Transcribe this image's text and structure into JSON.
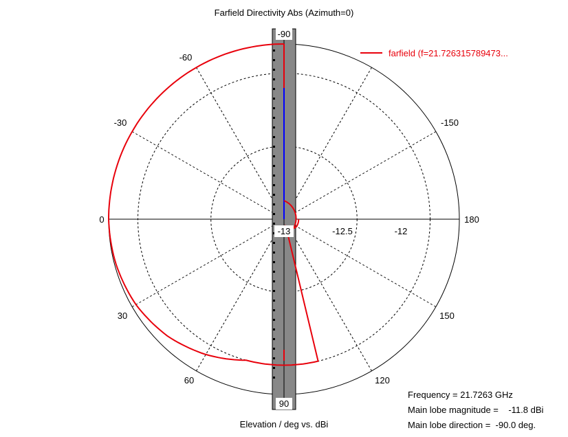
{
  "chart_data": {
    "type": "polar",
    "title": "Farfield Directivity Abs (Azimuth=0)",
    "xlabel": "Elevation / deg vs. dBi",
    "angle_ticks": [
      "-90",
      "-60",
      "-30",
      "0",
      "30",
      "60",
      "90",
      "120",
      "150",
      "180",
      "-150"
    ],
    "radial_ticks": [
      "-13",
      "-12.5",
      "-12"
    ],
    "radial_range": [
      -13,
      -11.8
    ],
    "grid": true,
    "legend_position": "top-right",
    "colors": {
      "series": "#e8000b",
      "main_lobe": "#0000ff",
      "bar": "#888888"
    },
    "series": [
      {
        "name": "farfield (f=21.726315789473...",
        "angle_deg": [
          -90,
          -75,
          -60,
          -45,
          -30,
          -15,
          0,
          15,
          30,
          45,
          60,
          75,
          90,
          105,
          120,
          135,
          150,
          165,
          180
        ],
        "values": [
          -11.8,
          -11.8,
          -11.8,
          -11.8,
          -11.8,
          -11.8,
          -11.8,
          -11.81,
          -11.83,
          -11.87,
          -11.93,
          -12.0,
          -12.0,
          -12.95,
          -12.93,
          -12.91,
          -12.9,
          -12.9,
          -12.9
        ]
      }
    ],
    "main_lobe_direction": -90
  },
  "info": {
    "frequency": "Frequency = 21.7263 GHz",
    "magnitude": "Main lobe magnitude =    -11.8 dBi",
    "direction": "Main lobe direction =  -90.0 deg."
  }
}
